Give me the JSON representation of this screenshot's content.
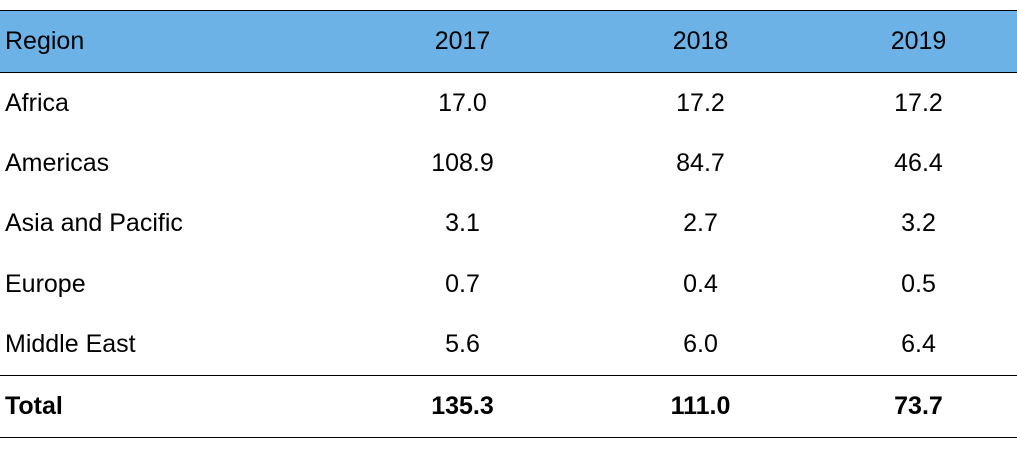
{
  "chart_data": {
    "type": "table",
    "columns": [
      "Region",
      "2017",
      "2018",
      "2019"
    ],
    "rows": [
      {
        "region": "Africa",
        "values": [
          "17.0",
          "17.2",
          "17.2"
        ]
      },
      {
        "region": "Americas",
        "values": [
          "108.9",
          "84.7",
          "46.4"
        ]
      },
      {
        "region": "Asia and Pacific",
        "values": [
          "3.1",
          "2.7",
          "3.2"
        ]
      },
      {
        "region": "Europe",
        "values": [
          "0.7",
          "0.4",
          "0.5"
        ]
      },
      {
        "region": "Middle East",
        "values": [
          "5.6",
          "6.0",
          "6.4"
        ]
      }
    ],
    "total": {
      "label": "Total",
      "values": [
        "135.3",
        "111.0",
        "73.7"
      ]
    }
  },
  "colors": {
    "header_background": "#6cb2e6",
    "rule": "#000000"
  }
}
